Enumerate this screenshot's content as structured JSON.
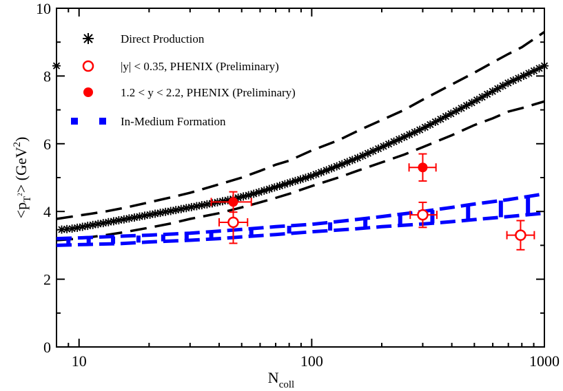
{
  "chart_data": {
    "type": "line",
    "x_scale": "log",
    "xlim": [
      8,
      1000
    ],
    "ylim": [
      0,
      10
    ],
    "xlabel": "N",
    "xlabel_sub": "coll",
    "ylabel_parts": {
      "lt": "<p",
      "sub": "T",
      "sup_small": "2",
      "gt": "> (GeV",
      "sup": "2",
      "close": ")"
    },
    "x_major_ticks": [
      10,
      100,
      1000
    ],
    "x_tick_labels": [
      "10",
      "100",
      "1000"
    ],
    "y_major_ticks": [
      0,
      2,
      4,
      6,
      8,
      10
    ],
    "y_tick_labels": [
      "0",
      "2",
      "4",
      "6",
      "8",
      "10"
    ],
    "legend": {
      "position": "top-left",
      "entries": [
        {
          "label": "Direct Production",
          "marker": "asterisk",
          "color": "#000000"
        },
        {
          "label": "|y| < 0.35, PHENIX (Preliminary)",
          "marker": "open-circle",
          "color": "#ff0000"
        },
        {
          "label": "1.2 < y < 2.2, PHENIX (Preliminary)",
          "marker": "filled-circle",
          "color": "#ff0000"
        },
        {
          "label": "In-Medium Formation",
          "marker": "square-dash",
          "color": "#0000ff"
        }
      ]
    },
    "series": [
      {
        "name": "Direct Production",
        "style": "asterisk-line",
        "color": "#000000",
        "x": [
          8,
          9.5,
          11,
          13,
          16,
          20,
          25,
          30,
          38,
          46,
          55,
          70,
          85,
          100,
          130,
          160,
          200,
          250,
          300,
          400,
          500,
          600,
          700,
          800,
          1000
        ],
        "y": [
          3.45,
          3.5,
          3.58,
          3.67,
          3.78,
          3.9,
          4.02,
          4.12,
          4.25,
          4.37,
          4.5,
          4.72,
          4.9,
          5.05,
          5.35,
          5.6,
          5.9,
          6.2,
          6.45,
          6.9,
          7.25,
          7.55,
          7.8,
          7.98,
          8.3
        ]
      },
      {
        "name": "Direct Production upper band",
        "style": "dashed",
        "color": "#000000",
        "x": [
          8,
          10,
          13,
          16,
          20,
          25,
          30,
          40,
          50,
          60,
          70,
          80,
          100,
          130,
          160,
          200,
          250,
          300,
          400,
          500,
          600,
          700,
          800,
          1000
        ],
        "y": [
          3.78,
          3.88,
          4.0,
          4.12,
          4.27,
          4.42,
          4.55,
          4.8,
          5.0,
          5.2,
          5.38,
          5.5,
          5.8,
          6.1,
          6.4,
          6.7,
          7.0,
          7.3,
          7.75,
          8.1,
          8.4,
          8.65,
          8.85,
          9.3
        ]
      },
      {
        "name": "Direct Production lower band",
        "style": "dashed",
        "color": "#000000",
        "x": [
          8,
          10,
          13,
          16,
          20,
          25,
          30,
          40,
          50,
          60,
          70,
          80,
          100,
          130,
          160,
          200,
          250,
          300,
          400,
          500,
          600,
          700,
          800,
          1000
        ],
        "y": [
          3.15,
          3.2,
          3.3,
          3.4,
          3.52,
          3.65,
          3.78,
          3.95,
          4.12,
          4.27,
          4.4,
          4.52,
          4.75,
          5.0,
          5.22,
          5.45,
          5.68,
          5.9,
          6.25,
          6.55,
          6.75,
          6.95,
          7.05,
          7.25
        ]
      },
      {
        "name": "In-Medium Formation upper band",
        "style": "thick-dashed",
        "color": "#0000ff",
        "x": [
          8,
          10,
          15,
          20,
          30,
          40,
          50,
          70,
          100,
          150,
          200,
          300,
          400,
          500,
          700,
          1000
        ],
        "y": [
          3.2,
          3.22,
          3.27,
          3.3,
          3.36,
          3.42,
          3.47,
          3.55,
          3.62,
          3.75,
          3.85,
          4.0,
          4.12,
          4.22,
          4.35,
          4.52
        ]
      },
      {
        "name": "In-Medium Formation lower band",
        "style": "thick-dashed",
        "color": "#0000ff",
        "x": [
          8,
          10,
          15,
          20,
          30,
          40,
          50,
          70,
          100,
          150,
          200,
          300,
          400,
          500,
          700,
          1000
        ],
        "y": [
          3.0,
          3.02,
          3.05,
          3.1,
          3.15,
          3.2,
          3.25,
          3.32,
          3.4,
          3.48,
          3.55,
          3.63,
          3.7,
          3.76,
          3.85,
          3.95
        ]
      }
    ],
    "points": [
      {
        "name": "|y| < 0.35, PHENIX (Preliminary)",
        "marker": "open-circle",
        "color": "#ff0000",
        "data": [
          {
            "x": 46,
            "y": 3.68,
            "ey": 0.62,
            "xerr": [
              40,
              53
            ]
          },
          {
            "x": 300,
            "y": 3.9,
            "ey": 0.37,
            "xerr": [
              265,
              345
            ]
          },
          {
            "x": 790,
            "y": 3.3,
            "ey": 0.43,
            "xerr": [
              690,
              905
            ]
          }
        ]
      },
      {
        "name": "1.2 < y < 2.2, PHENIX (Preliminary)",
        "marker": "filled-circle",
        "color": "#ff0000",
        "data": [
          {
            "x": 46,
            "y": 4.28,
            "ey": 0.3,
            "xerr": [
              37,
              55
            ]
          },
          {
            "x": 300,
            "y": 5.3,
            "ey": 0.4,
            "xerr": [
              262,
              342
            ]
          }
        ]
      }
    ]
  }
}
